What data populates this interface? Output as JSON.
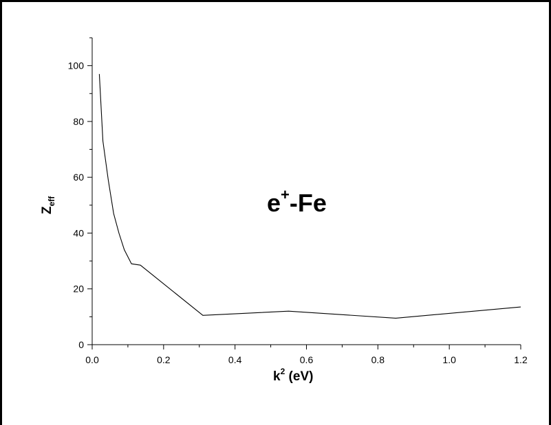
{
  "chart_data": {
    "type": "line",
    "title": "",
    "annotation": {
      "base": "e",
      "sup": "+",
      "rest": "-Fe"
    },
    "xlabel": {
      "base": "k",
      "sup": "2",
      "rest": " (eV)"
    },
    "ylabel": {
      "base": "Z",
      "sub": "eff"
    },
    "xlim": [
      0.0,
      1.2
    ],
    "ylim": [
      0,
      110
    ],
    "xticks": [
      0.0,
      0.2,
      0.4,
      0.6,
      0.8,
      1.0,
      1.2
    ],
    "xtick_labels": [
      "0.0",
      "0.2",
      "0.4",
      "0.6",
      "0.8",
      "1.0",
      "1.2"
    ],
    "yticks": [
      0,
      20,
      40,
      60,
      80,
      100
    ],
    "ytick_labels": [
      "0",
      "20",
      "40",
      "60",
      "80",
      "100"
    ],
    "grid": false,
    "legend": "none",
    "color": "#000000",
    "series": [
      {
        "x": [
          0.02,
          0.03,
          0.045,
          0.06,
          0.075,
          0.09,
          0.11,
          0.135,
          0.31,
          0.55,
          0.85,
          1.2
        ],
        "y": [
          97,
          73,
          59,
          47,
          40,
          34,
          29,
          28.5,
          10.5,
          12,
          9.5,
          13.5
        ]
      }
    ]
  }
}
